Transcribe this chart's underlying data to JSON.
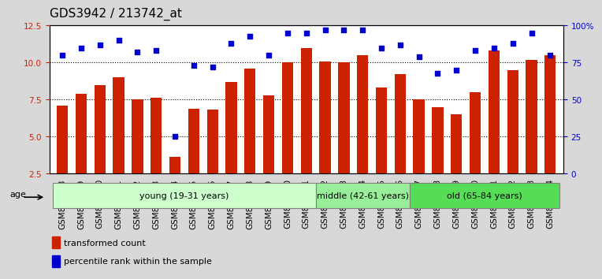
{
  "title": "GDS3942 / 213742_at",
  "samples": [
    "GSM812988",
    "GSM812989",
    "GSM812990",
    "GSM812991",
    "GSM812992",
    "GSM812993",
    "GSM812994",
    "GSM812995",
    "GSM812996",
    "GSM812997",
    "GSM812998",
    "GSM812999",
    "GSM813000",
    "GSM813001",
    "GSM813002",
    "GSM813003",
    "GSM813004",
    "GSM813005",
    "GSM813006",
    "GSM813007",
    "GSM813008",
    "GSM813009",
    "GSM813010",
    "GSM813011",
    "GSM813012",
    "GSM813013",
    "GSM813014"
  ],
  "bar_values": [
    7.1,
    7.9,
    8.5,
    9.0,
    7.5,
    7.6,
    3.6,
    6.9,
    6.8,
    8.7,
    9.6,
    7.8,
    10.0,
    11.0,
    10.1,
    10.0,
    10.5,
    8.3,
    9.2,
    7.5,
    7.0,
    6.5,
    8.0,
    10.8,
    9.5,
    10.2,
    10.5
  ],
  "percentile_values": [
    80,
    85,
    87,
    90,
    82,
    83,
    25,
    73,
    72,
    88,
    93,
    80,
    95,
    95,
    97,
    97,
    97,
    85,
    87,
    79,
    68,
    70,
    83,
    85,
    88,
    95,
    80
  ],
  "bar_color": "#cc2200",
  "percentile_color": "#0000cc",
  "ylim_left": [
    2.5,
    12.5
  ],
  "ylim_right": [
    0,
    100
  ],
  "yticks_left": [
    2.5,
    5.0,
    7.5,
    10.0,
    12.5
  ],
  "yticks_right": [
    0,
    25,
    50,
    75,
    100
  ],
  "groups": [
    {
      "label": "young (19-31 years)",
      "start": 0,
      "end": 14,
      "color": "#ccffcc"
    },
    {
      "label": "middle (42-61 years)",
      "start": 14,
      "end": 19,
      "color": "#99ee99"
    },
    {
      "label": "old (65-84 years)",
      "start": 19,
      "end": 27,
      "color": "#55dd55"
    }
  ],
  "age_label": "age",
  "legend_bar_label": "transformed count",
  "legend_pct_label": "percentile rank within the sample",
  "background_color": "#d8d8d8",
  "plot_bg_color": "#ffffff",
  "title_fontsize": 11,
  "tick_fontsize": 7.5
}
